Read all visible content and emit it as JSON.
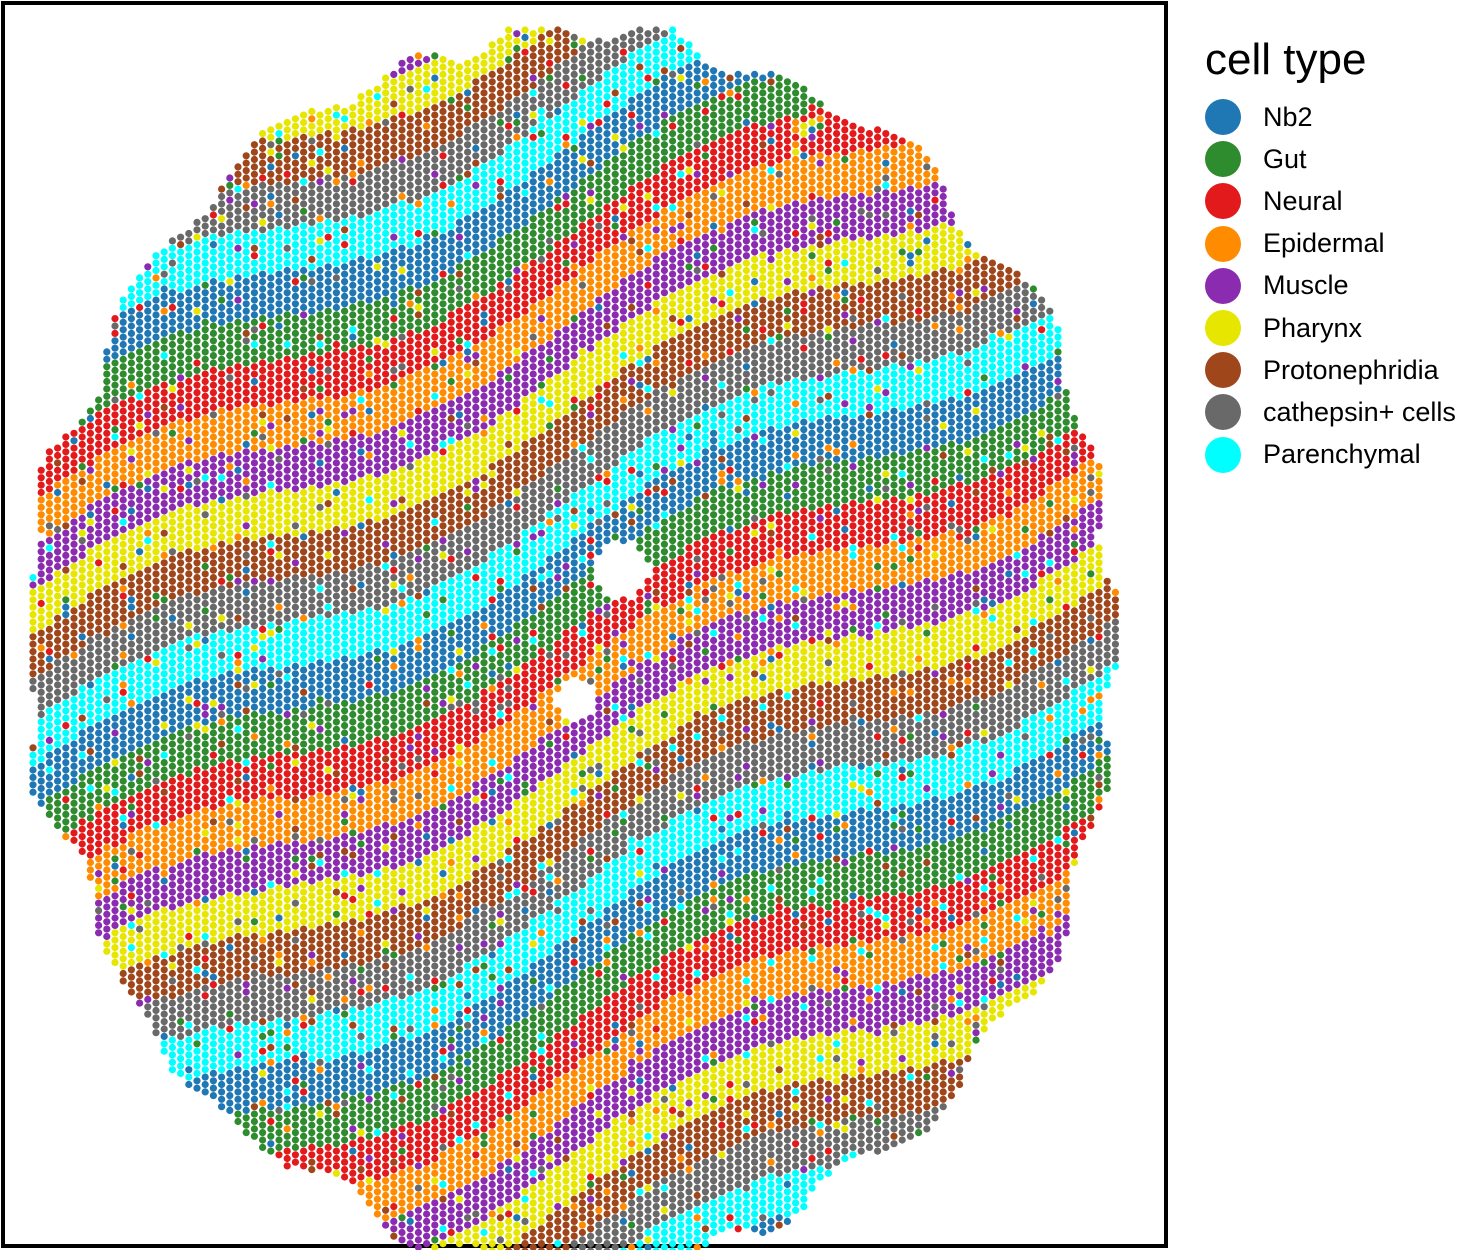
{
  "chart_data": {
    "type": "scatter",
    "title": "",
    "xlabel": "",
    "ylabel": "",
    "axes_shown": false,
    "legend": {
      "title": "cell type",
      "placement": "right"
    },
    "series": [
      {
        "name": "Nb2",
        "color": "#1f77b4"
      },
      {
        "name": "Gut",
        "color": "#2e8b2e"
      },
      {
        "name": "Neural",
        "color": "#e31a1c"
      },
      {
        "name": "Epidermal",
        "color": "#ff8c00"
      },
      {
        "name": "Muscle",
        "color": "#8b2cb0"
      },
      {
        "name": "Pharynx",
        "color": "#e6e600"
      },
      {
        "name": "Protonephridia",
        "color": "#a0461b"
      },
      {
        "name": "cathepsin+ cells",
        "color": "#696969"
      },
      {
        "name": "Parenchymal",
        "color": "#00ffff"
      }
    ]
  }
}
